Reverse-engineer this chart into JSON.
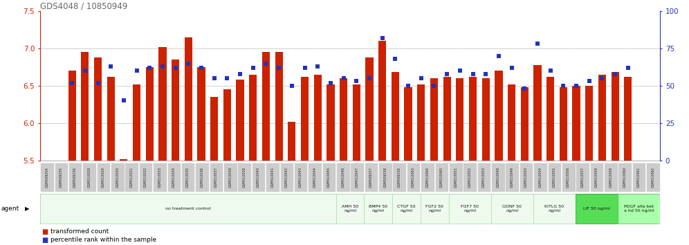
{
  "title": "GDS4048 / 10850949",
  "samples": [
    "GSM509254",
    "GSM509255",
    "GSM509256",
    "GSM510028",
    "GSM510029",
    "GSM510030",
    "GSM510031",
    "GSM510032",
    "GSM510033",
    "GSM510034",
    "GSM510035",
    "GSM510036",
    "GSM510037",
    "GSM510038",
    "GSM510039",
    "GSM510040",
    "GSM510041",
    "GSM510042",
    "GSM510043",
    "GSM510044",
    "GSM510045",
    "GSM510046",
    "GSM510047",
    "GSM509257",
    "GSM509258",
    "GSM509259",
    "GSM510063",
    "GSM510064",
    "GSM510065",
    "GSM510051",
    "GSM510052",
    "GSM510053",
    "GSM510048",
    "GSM510049",
    "GSM510050",
    "GSM510054",
    "GSM510055",
    "GSM510056",
    "GSM510057",
    "GSM510058",
    "GSM510059",
    "GSM510060",
    "GSM510061",
    "GSM510062"
  ],
  "bar_values": [
    6.7,
    6.95,
    6.88,
    6.62,
    5.52,
    6.52,
    6.75,
    7.02,
    6.85,
    7.15,
    6.75,
    6.35,
    6.45,
    6.58,
    6.65,
    6.95,
    6.95,
    6.02,
    6.62,
    6.65,
    6.52,
    6.6,
    6.52,
    6.88,
    7.1,
    6.68,
    6.48,
    6.52,
    6.6,
    6.62,
    6.6,
    6.62,
    6.6,
    6.7,
    6.52,
    6.48,
    6.78,
    6.62,
    6.48,
    6.5,
    6.5,
    6.65,
    6.68,
    6.62
  ],
  "dot_values": [
    52,
    60,
    52,
    63,
    40,
    60,
    62,
    63,
    62,
    65,
    62,
    55,
    55,
    58,
    62,
    65,
    62,
    50,
    62,
    63,
    52,
    55,
    53,
    55,
    82,
    68,
    50,
    55,
    50,
    58,
    60,
    58,
    58,
    70,
    62,
    48,
    78,
    60,
    50,
    50,
    53,
    55,
    58,
    62
  ],
  "ylim_left": [
    5.5,
    7.5
  ],
  "ylim_right": [
    0,
    100
  ],
  "yticks_left": [
    5.5,
    6.0,
    6.5,
    7.0,
    7.5
  ],
  "yticks_right": [
    0,
    25,
    50,
    75,
    100
  ],
  "bar_color": "#cc2200",
  "dot_color": "#2233bb",
  "bar_bottom": 5.5,
  "agent_groups": [
    {
      "label": "no treatment control",
      "count": 21,
      "color": "#eefaee",
      "border": "#aaddaa"
    },
    {
      "label": "AMH 50\nng/ml",
      "count": 2,
      "color": "#eefaee",
      "border": "#aaddaa"
    },
    {
      "label": "BMP4 50\nng/ml",
      "count": 2,
      "color": "#eefaee",
      "border": "#aaddaa"
    },
    {
      "label": "CTGF 50\nng/ml",
      "count": 2,
      "color": "#eefaee",
      "border": "#aaddaa"
    },
    {
      "label": "FGF2 50\nng/ml",
      "count": 2,
      "color": "#eefaee",
      "border": "#aaddaa"
    },
    {
      "label": "FGF7 50\nng/ml",
      "count": 3,
      "color": "#eefaee",
      "border": "#aaddaa"
    },
    {
      "label": "GDNF 50\nng/ml",
      "count": 3,
      "color": "#eefaee",
      "border": "#aaddaa"
    },
    {
      "label": "KITLG 50\nng/ml",
      "count": 3,
      "color": "#eefaee",
      "border": "#aaddaa"
    },
    {
      "label": "LIF 50 ng/ml",
      "count": 3,
      "color": "#55dd55",
      "border": "#22aa22"
    },
    {
      "label": "PDGF alfa bet\na hd 50 ng/ml",
      "count": 3,
      "color": "#aaffaa",
      "border": "#55bb55"
    }
  ],
  "gridlines": [
    6.0,
    6.5,
    7.0
  ],
  "title_color": "#666666",
  "axes_color_left": "#cc2200",
  "axes_color_right": "#2233bb",
  "sample_box_color": "#cccccc",
  "sample_text_color": "#222222"
}
